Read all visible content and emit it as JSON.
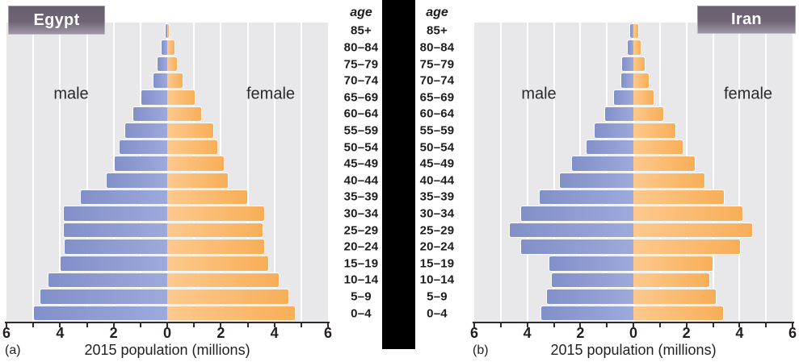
{
  "age_header": "age",
  "age_groups": [
    "85+",
    "80–84",
    "75–79",
    "70–74",
    "65–69",
    "60–64",
    "55–59",
    "50–54",
    "45–49",
    "40–44",
    "35–39",
    "30–34",
    "25–29",
    "20–24",
    "15–19",
    "10–14",
    "5–9",
    "0–4"
  ],
  "panels": [
    {
      "label": "(a)",
      "title": "Egypt",
      "male_label": "male",
      "female_label": "female",
      "caption": "2015 population (millions)",
      "axis_ticks": [
        "6",
        "4",
        "2",
        "0",
        "2",
        "4",
        "6"
      ]
    },
    {
      "label": "(b)",
      "title": "Iran",
      "male_label": "male",
      "female_label": "female",
      "caption": "2015 population (millions)",
      "axis_ticks": [
        "6",
        "4",
        "2",
        "0",
        "2",
        "4",
        "6"
      ]
    }
  ],
  "chart_data": [
    {
      "type": "bar",
      "subtype": "population-pyramid",
      "title": "Egypt",
      "xlabel": "2015 population (millions)",
      "ylabel": "age",
      "axis_unit": "millions",
      "axis_max_each_side": 6,
      "tick_step_labeled": 2,
      "gridline_step": 1,
      "categories": [
        "85+",
        "80–84",
        "75–79",
        "70–74",
        "65–69",
        "60–64",
        "55–59",
        "50–54",
        "45–49",
        "40–44",
        "35–39",
        "30–34",
        "25–29",
        "20–24",
        "15–19",
        "10–14",
        "5–9",
        "0–4"
      ],
      "series": [
        {
          "name": "male",
          "values": [
            0.1,
            0.25,
            0.4,
            0.55,
            1.0,
            1.3,
            1.6,
            1.8,
            2.0,
            2.3,
            3.25,
            3.9,
            3.9,
            3.85,
            4.0,
            4.45,
            4.75,
            5.0
          ]
        },
        {
          "name": "female",
          "values": [
            0.1,
            0.3,
            0.4,
            0.6,
            1.05,
            1.3,
            1.75,
            1.9,
            2.15,
            2.3,
            3.0,
            3.65,
            3.6,
            3.65,
            3.8,
            4.2,
            4.55,
            4.8
          ]
        }
      ]
    },
    {
      "type": "bar",
      "subtype": "population-pyramid",
      "title": "Iran",
      "xlabel": "2015 population (millions)",
      "ylabel": "age",
      "axis_unit": "millions",
      "axis_max_each_side": 6,
      "tick_step_labeled": 2,
      "gridline_step": 1,
      "categories": [
        "85+",
        "80–84",
        "75–79",
        "70–74",
        "65–69",
        "60–64",
        "55–59",
        "50–54",
        "45–49",
        "40–44",
        "35–39",
        "30–34",
        "25–29",
        "20–24",
        "15–19",
        "10–14",
        "5–9",
        "0–4"
      ],
      "series": [
        {
          "name": "male",
          "values": [
            0.15,
            0.25,
            0.45,
            0.5,
            0.75,
            1.1,
            1.5,
            1.8,
            2.35,
            2.8,
            3.55,
            4.25,
            4.7,
            4.25,
            3.2,
            3.1,
            3.3,
            3.5
          ]
        },
        {
          "name": "female",
          "values": [
            0.2,
            0.3,
            0.45,
            0.6,
            0.8,
            1.15,
            1.6,
            1.9,
            2.35,
            2.7,
            3.45,
            4.15,
            4.5,
            4.05,
            3.0,
            2.9,
            3.15,
            3.4
          ]
        }
      ]
    }
  ],
  "colors": {
    "male_bar_outer": "#8290c9",
    "male_bar_inner": "#9ea9db",
    "female_bar_inner": "#fdc98e",
    "female_bar_outer": "#f8ae58",
    "plot_background": "#e8e8ea",
    "gridline": "#ffffff",
    "axis": "#2f2b2c",
    "text": "#231f20",
    "title_box_top": "#69606f",
    "title_box_bottom": "#a29aab",
    "title_text": "#ffffff",
    "divider": "#000000"
  }
}
